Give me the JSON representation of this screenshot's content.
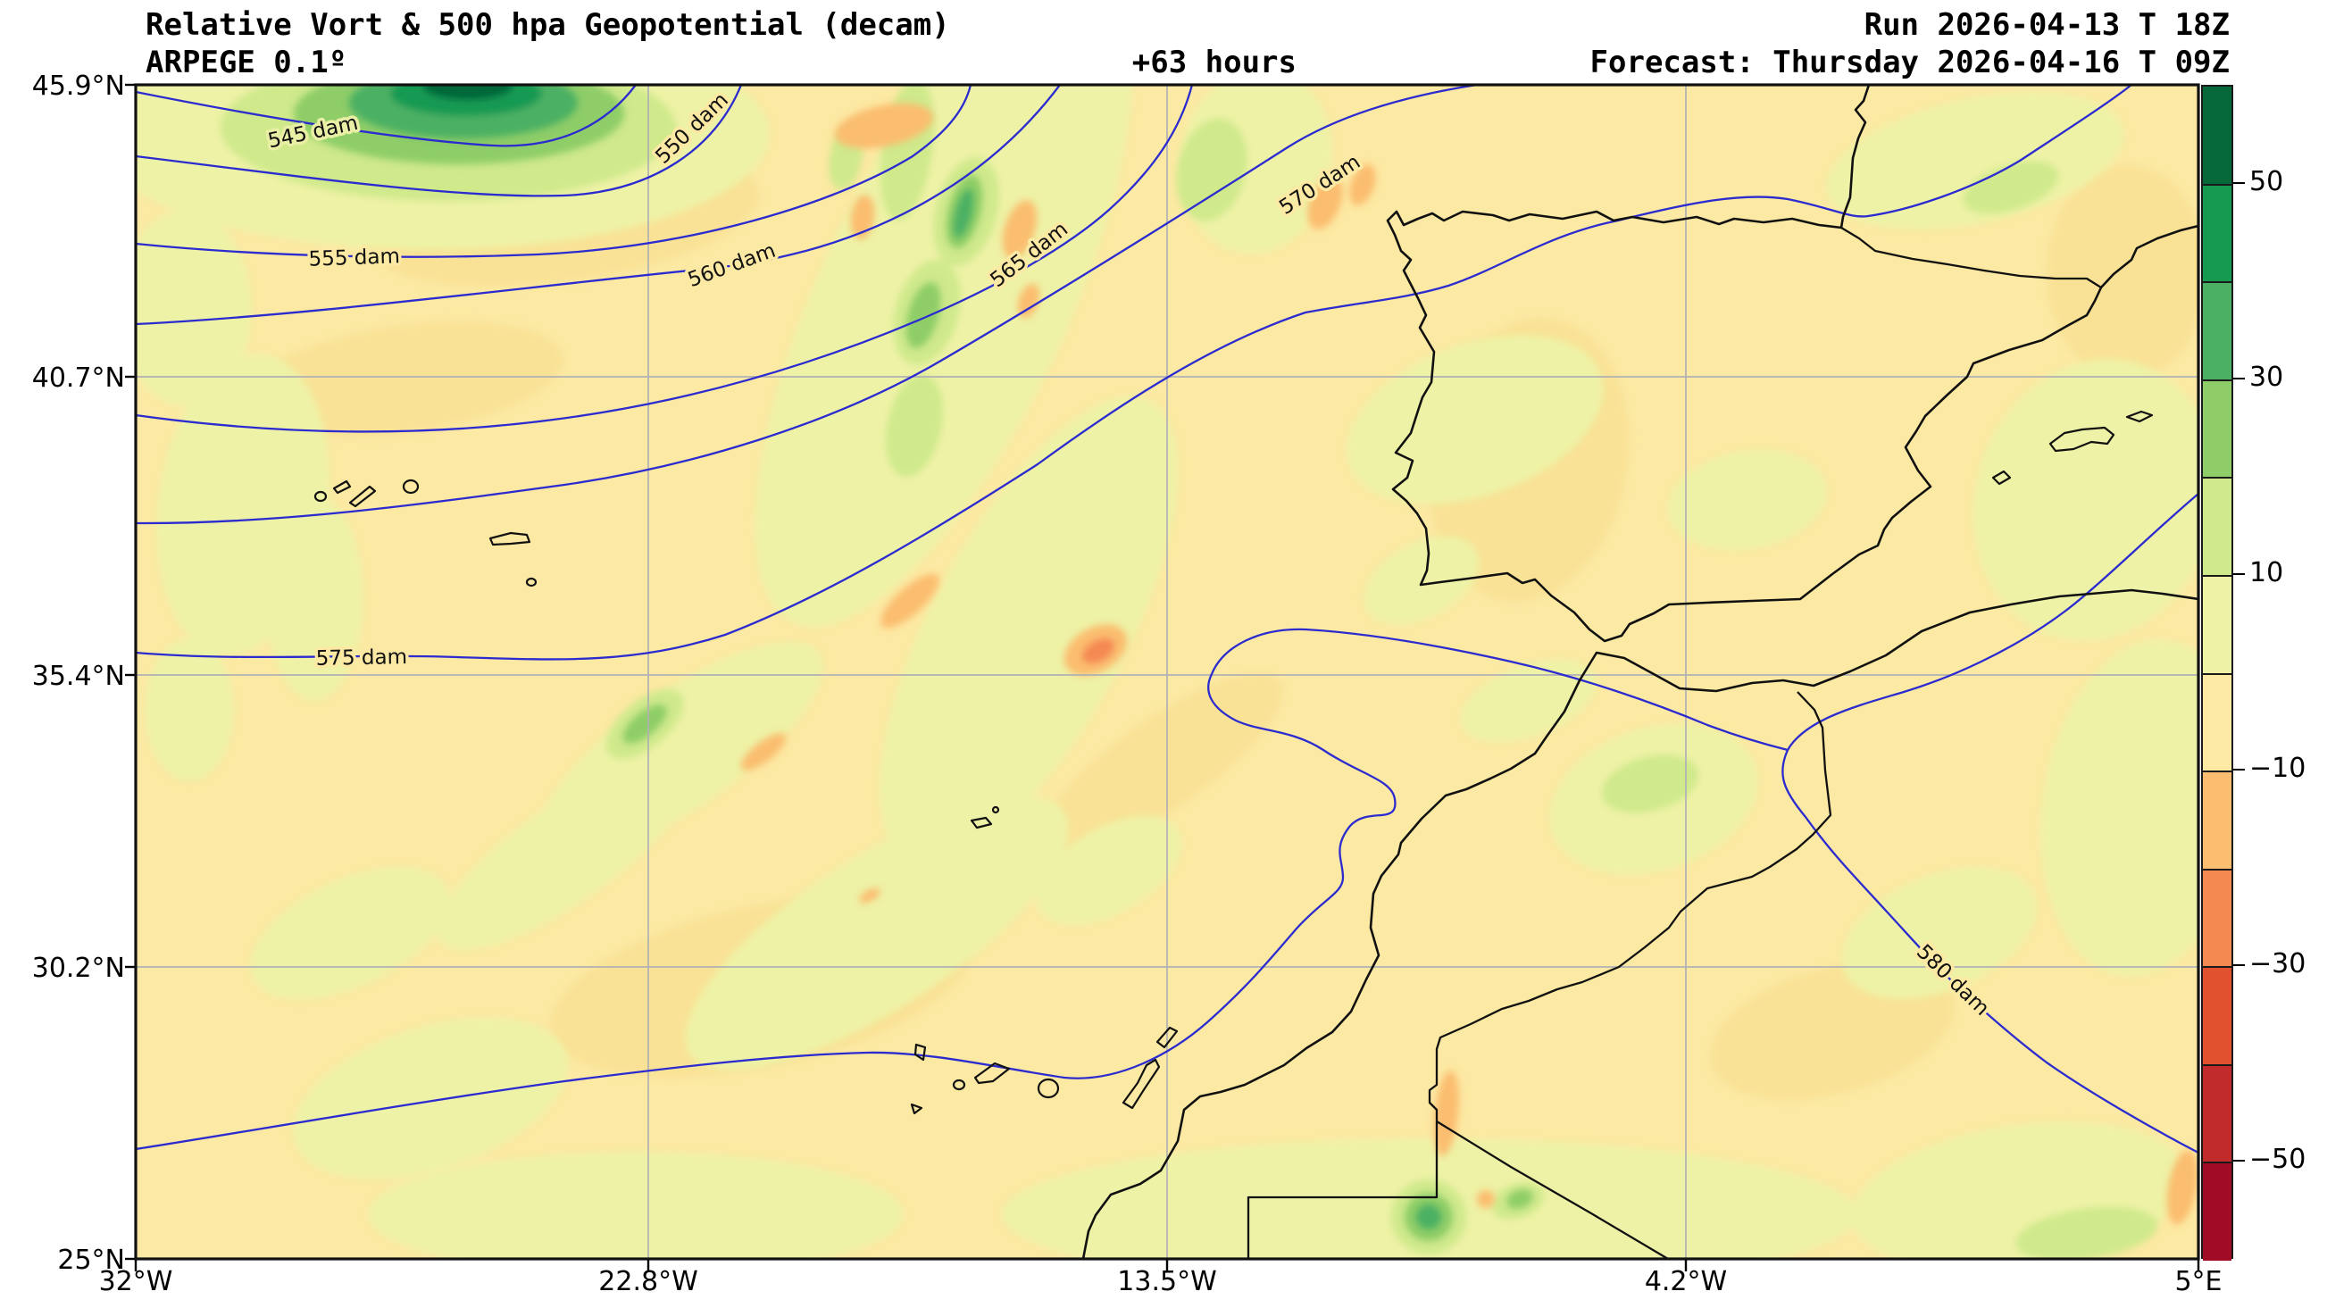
{
  "header": {
    "title": "Relative Vort & 500 hpa Geopotential (decam)",
    "model": "ARPEGE 0.1º",
    "lead": "+63 hours",
    "run": "Run 2026-04-13 T 18Z",
    "forecast": "Forecast: Thursday 2026-04-16 T 09Z"
  },
  "chart_data": {
    "type": "heatmap",
    "subtype": "filled-contour weather map with geopotential contour lines",
    "title": "Relative Vort & 500 hpa Geopotential (decam)",
    "model": "ARPEGE 0.1º",
    "lead": "+63 hours",
    "run": "Run 2026-04-13 T 18Z",
    "forecast": "Forecast: Thursday 2026-04-16 T 09Z",
    "region": "North Atlantic / Iberian Peninsula / NW Africa (Azores, Madeira, Canary Islands visible)",
    "x_axis": {
      "ticks": [
        "32°W",
        "22.8°W",
        "13.5°W",
        "4.2°W",
        "5°E"
      ],
      "range_deg_lon": [
        -32,
        5
      ],
      "grid": true
    },
    "y_axis": {
      "ticks": [
        "45.9°N",
        "40.7°N",
        "35.4°N",
        "30.2°N",
        "25°N"
      ],
      "range_deg_lat": [
        25,
        45.9
      ],
      "grid": true
    },
    "geopotential_contours_dam": [
      545,
      550,
      555,
      560,
      565,
      570,
      575,
      580
    ],
    "contour_labels": [
      "545 dam",
      "550 dam",
      "555 dam",
      "560 dam",
      "565 dam",
      "570 dam",
      "575 dam",
      "580 dam"
    ],
    "contour_line_color": "#2b2bd0",
    "coastline_color": "#111111",
    "grid_color": "#b0b0b5",
    "vorticity_maximum": "closed dark-green maximum (>50) centered near 26W 46N at top-left; secondary green streaks along trough axis toward 14W 43N; green bullseye near 9W 25.8N",
    "colorbar": {
      "units": "relative vorticity",
      "range": [
        -60,
        60
      ],
      "n_segments": 12,
      "tick_labels": [
        "50",
        "30",
        "10",
        "-10",
        "-30",
        "-50"
      ],
      "colors": [
        "#05683a",
        "#169a52",
        "#4bb063",
        "#8ecd67",
        "#cfe98b",
        "#eef2a6",
        "#fce9a3",
        "#fbbd6f",
        "#f58952",
        "#e1502f",
        "#c22b2b",
        "#a00b26"
      ]
    },
    "background_fill": "#fce9a3"
  }
}
